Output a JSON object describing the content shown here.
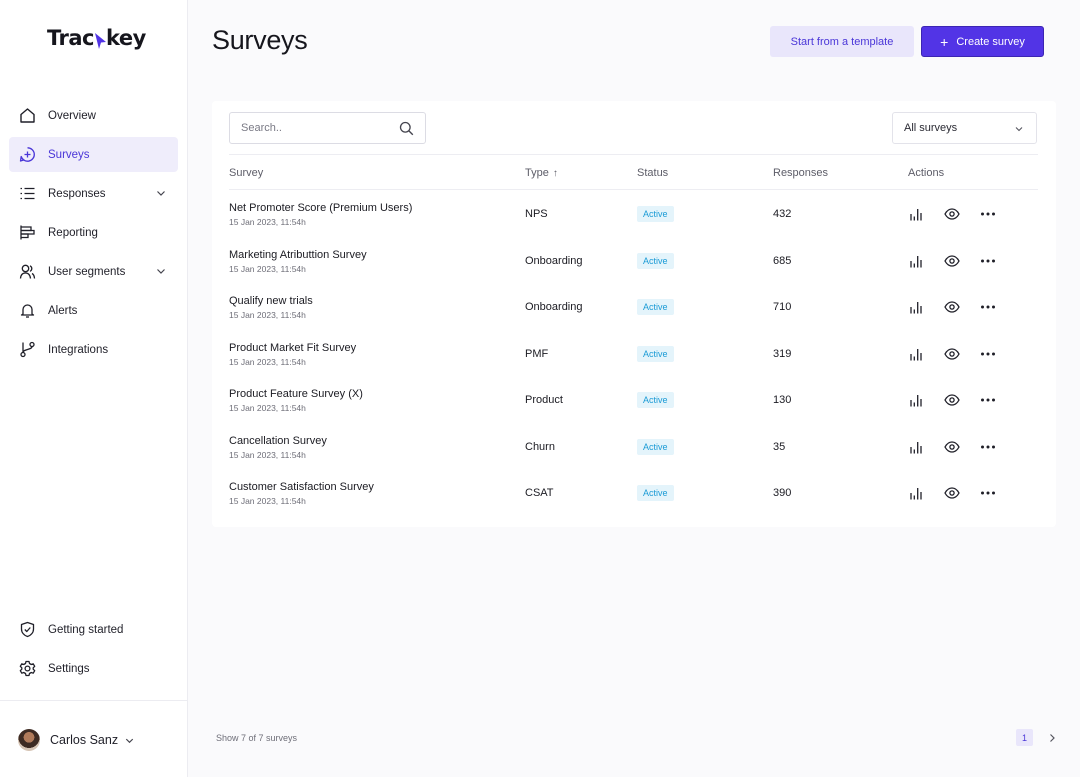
{
  "brand": {
    "name_prefix": "Trac",
    "name_suffix": "key",
    "accent": "#5234e6"
  },
  "sidebar": {
    "items": [
      {
        "label": "Overview",
        "icon": "home-icon",
        "active": false
      },
      {
        "label": "Surveys",
        "icon": "survey-plus-icon",
        "active": true
      },
      {
        "label": "Responses",
        "icon": "list-icon",
        "expandable": true
      },
      {
        "label": "Reporting",
        "icon": "reporting-icon"
      },
      {
        "label": "User segments",
        "icon": "users-icon",
        "expandable": true
      },
      {
        "label": "Alerts",
        "icon": "bell-icon"
      },
      {
        "label": "Integrations",
        "icon": "git-branch-icon"
      }
    ],
    "bottom_items": [
      {
        "label": "Getting started",
        "icon": "shield-check-icon"
      },
      {
        "label": "Settings",
        "icon": "gear-icon"
      }
    ],
    "user": {
      "name": "Carlos Sanz"
    }
  },
  "header": {
    "title": "Surveys",
    "template_button": "Start from a template",
    "create_button": "Create survey",
    "create_icon": "+"
  },
  "toolbar": {
    "search_placeholder": "Search..",
    "filter_value": "All surveys"
  },
  "table": {
    "columns": {
      "survey": "Survey",
      "type": "Type",
      "type_sort": "↑",
      "status": "Status",
      "responses": "Responses",
      "actions": "Actions"
    },
    "rows": [
      {
        "name": "Net Promoter Score (Premium Users)",
        "date": "15 Jan 2023, 11:54h",
        "type": "NPS",
        "status": "Active",
        "responses": "432"
      },
      {
        "name": "Marketing Atributtion Survey",
        "date": "15 Jan 2023, 11:54h",
        "type": "Onboarding",
        "status": "Active",
        "responses": "685"
      },
      {
        "name": "Qualify new trials",
        "date": "15 Jan 2023, 11:54h",
        "type": "Onboarding",
        "status": "Active",
        "responses": "710"
      },
      {
        "name": "Product Market Fit Survey",
        "date": "15 Jan 2023, 11:54h",
        "type": "PMF",
        "status": "Active",
        "responses": "319"
      },
      {
        "name": "Product Feature Survey (X)",
        "date": "15 Jan 2023, 11:54h",
        "type": "Product",
        "status": "Active",
        "responses": "130"
      },
      {
        "name": "Cancellation Survey",
        "date": "15 Jan 2023, 11:54h",
        "type": "Churn",
        "status": "Active",
        "responses": "35"
      },
      {
        "name": "Customer Satisfaction Survey",
        "date": "15 Jan 2023, 11:54h",
        "type": "CSAT",
        "status": "Active",
        "responses": "390"
      }
    ],
    "row_actions": [
      "bar-chart-icon",
      "eye-icon",
      "more-horizontal-icon"
    ]
  },
  "footer": {
    "summary": "Show 7 of 7 surveys",
    "current_page": "1"
  }
}
